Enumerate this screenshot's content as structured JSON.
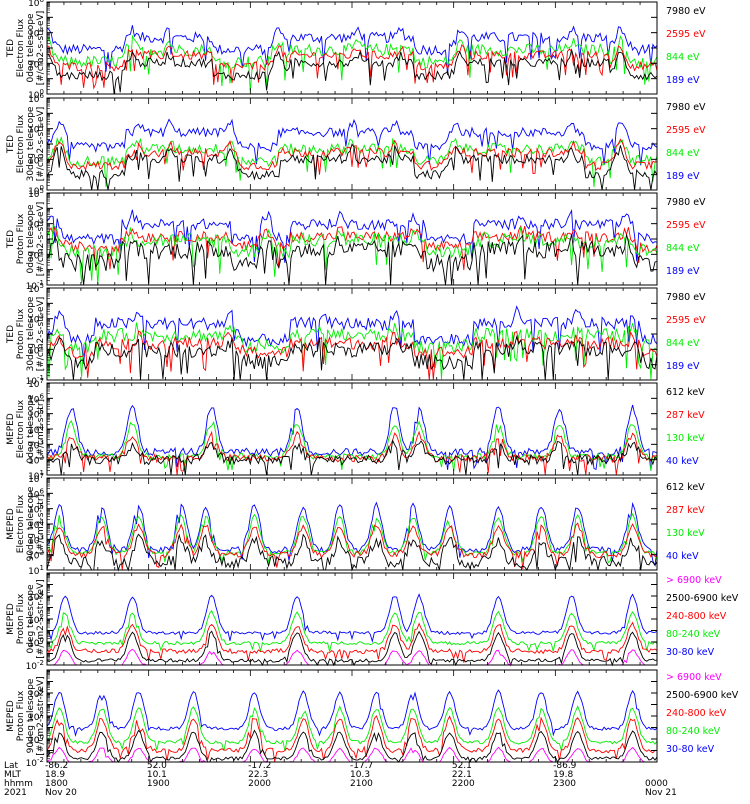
{
  "colors": {
    "blue": "#0000ff",
    "red": "#ff0000",
    "green": "#00ee00",
    "black": "#000000",
    "magenta": "#ff00ff"
  },
  "chart_data": [
    {
      "type": "line",
      "ylabel_lines": [
        "TED",
        "Electron Flux",
        "0deg telescope",
        "[#/cm2-s-str-eV]"
      ],
      "yscale": "log",
      "ylim_exp": [
        0,
        6
      ],
      "y_ticks": [
        {
          "b": "10",
          "e": "0"
        },
        {
          "b": "10",
          "e": "2"
        },
        {
          "b": "10",
          "e": "4"
        },
        {
          "b": "10",
          "e": "6"
        }
      ],
      "legend": [
        {
          "label": "7980 eV",
          "color": "black"
        },
        {
          "label": "2595 eV",
          "color": "red"
        },
        {
          "label": "844 eV",
          "color": "green"
        },
        {
          "label": "189 eV",
          "color": "blue"
        }
      ],
      "series": [
        {
          "color": "blue",
          "base": 2.9,
          "peak": 4.2,
          "noise": 0.35
        },
        {
          "color": "green",
          "base": 2.1,
          "peak": 3.4,
          "noise": 0.4
        },
        {
          "color": "red",
          "base": 1.8,
          "peak": 3.0,
          "noise": 0.3
        },
        {
          "color": "black",
          "base": 1.2,
          "peak": 2.6,
          "noise": 0.3
        }
      ],
      "peaks": [
        0.0,
        0.14,
        0.2,
        0.38,
        0.51,
        0.58,
        0.68,
        0.86,
        0.94
      ],
      "bands": [
        [
          0.13,
          0.27
        ],
        [
          0.4,
          0.6
        ],
        [
          0.68,
          0.92
        ]
      ]
    },
    {
      "type": "line",
      "ylabel_lines": [
        "TED",
        "Electron Flux",
        "30deg telescope",
        "[#/cm2-s-str-eV]"
      ],
      "yscale": "log",
      "ylim_exp": [
        0,
        6
      ],
      "y_ticks": [
        {
          "b": "10",
          "e": "0"
        },
        {
          "b": "10",
          "e": "2"
        },
        {
          "b": "10",
          "e": "4"
        },
        {
          "b": "10",
          "e": "6"
        }
      ],
      "legend": [
        {
          "label": "7980 eV",
          "color": "black"
        },
        {
          "label": "2595 eV",
          "color": "red"
        },
        {
          "label": "844 eV",
          "color": "green"
        },
        {
          "label": "189 eV",
          "color": "blue"
        }
      ],
      "series": [
        {
          "color": "blue",
          "base": 2.8,
          "peak": 4.4,
          "noise": 0.3
        },
        {
          "color": "green",
          "base": 1.9,
          "peak": 3.2,
          "noise": 0.35
        },
        {
          "color": "red",
          "base": 1.6,
          "peak": 3.0,
          "noise": 0.3
        },
        {
          "color": "black",
          "base": 1.0,
          "peak": 2.7,
          "noise": 0.3
        }
      ],
      "peaks": [
        0.02,
        0.15,
        0.2,
        0.3,
        0.5,
        0.57,
        0.67,
        0.86,
        0.94
      ],
      "bands": [
        [
          0.13,
          0.29
        ],
        [
          0.38,
          0.6
        ],
        [
          0.66,
          0.88
        ]
      ]
    },
    {
      "type": "line",
      "ylabel_lines": [
        "TED",
        "Proton Flux",
        "0deg telescope",
        "[#/cm2-s-str-eV]"
      ],
      "yscale": "log",
      "ylim_exp": [
        -1,
        5
      ],
      "y_ticks": [
        {
          "b": "10",
          "e": "-1"
        },
        {
          "b": "10",
          "e": "1"
        },
        {
          "b": "10",
          "e": "3"
        },
        {
          "b": "10",
          "e": "5"
        }
      ],
      "legend": [
        {
          "label": "7980 eV",
          "color": "black"
        },
        {
          "label": "2595 eV",
          "color": "red"
        },
        {
          "label": "844 eV",
          "color": "green"
        },
        {
          "label": "189 eV",
          "color": "blue"
        }
      ],
      "series": [
        {
          "color": "blue",
          "base": 2.0,
          "peak": 3.6,
          "noise": 0.35
        },
        {
          "color": "red",
          "base": 1.5,
          "peak": 2.6,
          "noise": 0.35
        },
        {
          "color": "green",
          "base": 1.2,
          "peak": 2.4,
          "noise": 0.5
        },
        {
          "color": "black",
          "base": 0.5,
          "peak": 1.8,
          "noise": 0.6
        }
      ],
      "peaks": [
        0.01,
        0.14,
        0.36,
        0.48,
        0.6,
        0.78,
        0.86,
        0.95
      ],
      "bands": [
        [
          0.12,
          0.3
        ],
        [
          0.4,
          0.62
        ],
        [
          0.7,
          0.95
        ]
      ]
    },
    {
      "type": "line",
      "ylabel_lines": [
        "TED",
        "Proton Flux",
        "30deg telescope",
        "[#/cm2-s-str-eV]"
      ],
      "yscale": "log",
      "ylim_exp": [
        -1,
        5
      ],
      "y_ticks": [
        {
          "b": "10",
          "e": "-1"
        },
        {
          "b": "10",
          "e": "1"
        },
        {
          "b": "10",
          "e": "3"
        },
        {
          "b": "10",
          "e": "5"
        }
      ],
      "legend": [
        {
          "label": "7980 eV",
          "color": "black"
        },
        {
          "label": "2595 eV",
          "color": "red"
        },
        {
          "label": "844 eV",
          "color": "green"
        },
        {
          "label": "189 eV",
          "color": "blue"
        }
      ],
      "series": [
        {
          "color": "blue",
          "base": 1.6,
          "peak": 3.4,
          "noise": 0.4
        },
        {
          "color": "green",
          "base": 1.2,
          "peak": 2.4,
          "noise": 0.45
        },
        {
          "color": "red",
          "base": 0.8,
          "peak": 1.8,
          "noise": 0.4
        },
        {
          "color": "black",
          "base": 0.2,
          "peak": 1.5,
          "noise": 0.5
        }
      ],
      "peaks": [
        0.02,
        0.15,
        0.3,
        0.45,
        0.57,
        0.77,
        0.87,
        0.96
      ],
      "bands": [
        [
          0.08,
          0.3
        ],
        [
          0.4,
          0.6
        ],
        [
          0.7,
          0.95
        ]
      ]
    },
    {
      "type": "line",
      "ylabel_lines": [
        "MEPED",
        "Electron Flux",
        "0deg telescope",
        "[#/cm2-s-str]"
      ],
      "yscale": "log",
      "ylim_exp": [
        1,
        7
      ],
      "y_ticks": [
        {
          "b": "10",
          "e": "1"
        },
        {
          "b": "10",
          "e": "2"
        },
        {
          "b": "10",
          "e": "3"
        },
        {
          "b": "10",
          "e": "4"
        },
        {
          "b": "10",
          "e": "5"
        },
        {
          "b": "10",
          "e": "6"
        },
        {
          "b": "10",
          "e": "7"
        }
      ],
      "legend": [
        {
          "label": "612 keV",
          "color": "black"
        },
        {
          "label": "287 keV",
          "color": "red"
        },
        {
          "label": "130 keV",
          "color": "green"
        },
        {
          "label": "40 keV",
          "color": "blue"
        }
      ],
      "series": [
        {
          "color": "blue",
          "base": 2.5,
          "peak": 5.4,
          "noise": 0.25
        },
        {
          "color": "green",
          "base": 2.2,
          "peak": 4.4,
          "noise": 0.2
        },
        {
          "color": "red",
          "base": 2.1,
          "peak": 3.6,
          "noise": 0.25
        },
        {
          "color": "black",
          "base": 2.0,
          "peak": 3.0,
          "noise": 0.35
        }
      ],
      "peaks": [
        0.04,
        0.14,
        0.27,
        0.41,
        0.57,
        0.61,
        0.74,
        0.84,
        0.96
      ],
      "bands": []
    },
    {
      "type": "line",
      "ylabel_lines": [
        "MEPED",
        "Electron Flux",
        "90deg telescope",
        "[#/cm2-s-str]"
      ],
      "yscale": "log",
      "ylim_exp": [
        1,
        7
      ],
      "y_ticks": [
        {
          "b": "10",
          "e": "1"
        },
        {
          "b": "10",
          "e": "2"
        },
        {
          "b": "10",
          "e": "3"
        },
        {
          "b": "10",
          "e": "4"
        },
        {
          "b": "10",
          "e": "5"
        },
        {
          "b": "10",
          "e": "6"
        },
        {
          "b": "10",
          "e": "7"
        }
      ],
      "legend": [
        {
          "label": "612 keV",
          "color": "black"
        },
        {
          "label": "287 keV",
          "color": "red"
        },
        {
          "label": "130 keV",
          "color": "green"
        },
        {
          "label": "40 keV",
          "color": "blue"
        }
      ],
      "series": [
        {
          "color": "blue",
          "base": 2.3,
          "peak": 5.2,
          "noise": 0.2
        },
        {
          "color": "green",
          "base": 2.1,
          "peak": 4.5,
          "noise": 0.15
        },
        {
          "color": "red",
          "base": 2.0,
          "peak": 3.9,
          "noise": 0.2
        },
        {
          "color": "black",
          "base": 1.5,
          "peak": 3.0,
          "noise": 0.4
        }
      ],
      "peaks": [
        0.02,
        0.09,
        0.15,
        0.22,
        0.26,
        0.34,
        0.42,
        0.48,
        0.54,
        0.6,
        0.66,
        0.74,
        0.81,
        0.87,
        0.96
      ],
      "bands": []
    },
    {
      "type": "line",
      "ylabel_lines": [
        "MEPED",
        "Proton Flux",
        "0deg telescope",
        "[#/cm2-s-str-keV]"
      ],
      "yscale": "log",
      "ylim_exp": [
        -2,
        6
      ],
      "y_ticks": [
        {
          "b": "10",
          "e": "-2"
        },
        {
          "b": "10",
          "e": "0"
        },
        {
          "b": "10",
          "e": "2"
        },
        {
          "b": "10",
          "e": "4"
        }
      ],
      "legend": [
        {
          "label": "> 6900 keV",
          "color": "magenta"
        },
        {
          "label": "2500-6900 keV",
          "color": "black"
        },
        {
          "label": "240-800 keV",
          "color": "red"
        },
        {
          "label": "80-240 keV",
          "color": "green"
        },
        {
          "label": "30-80 keV",
          "color": "blue"
        }
      ],
      "series": [
        {
          "color": "blue",
          "base": 0.8,
          "peak": 4.0,
          "noise": 0.15
        },
        {
          "color": "green",
          "base": -0.1,
          "peak": 2.6,
          "noise": 0.15
        },
        {
          "color": "red",
          "base": -0.8,
          "peak": 1.5,
          "noise": 0.2
        },
        {
          "color": "black",
          "base": -1.6,
          "peak": 0.8,
          "noise": 0.15
        },
        {
          "color": "magenta",
          "base": -2.1,
          "peak": -0.7,
          "noise": 0.1
        }
      ],
      "peaks": [
        0.03,
        0.14,
        0.27,
        0.41,
        0.57,
        0.61,
        0.74,
        0.86,
        0.96
      ],
      "bands": []
    },
    {
      "type": "line",
      "ylabel_lines": [
        "MEPED",
        "Proton Flux",
        "90deg telescope",
        "[#/cm2-s-str-keV]"
      ],
      "yscale": "log",
      "ylim_exp": [
        -2,
        6
      ],
      "y_ticks": [
        {
          "b": "10",
          "e": "-2"
        },
        {
          "b": "10",
          "e": "0"
        },
        {
          "b": "10",
          "e": "2"
        },
        {
          "b": "10",
          "e": "4"
        }
      ],
      "legend": [
        {
          "label": "> 6900 keV",
          "color": "magenta"
        },
        {
          "label": "2500-6900 keV",
          "color": "black"
        },
        {
          "label": "240-800 keV",
          "color": "red"
        },
        {
          "label": "80-240 keV",
          "color": "green"
        },
        {
          "label": "30-80 keV",
          "color": "blue"
        }
      ],
      "series": [
        {
          "color": "blue",
          "base": 0.9,
          "peak": 4.1,
          "noise": 0.15
        },
        {
          "color": "green",
          "base": -0.3,
          "peak": 2.7,
          "noise": 0.15
        },
        {
          "color": "red",
          "base": -1.0,
          "peak": 1.8,
          "noise": 0.2
        },
        {
          "color": "black",
          "base": -1.7,
          "peak": 0.6,
          "noise": 0.15
        },
        {
          "color": "magenta",
          "base": -2.1,
          "peak": -0.8,
          "noise": 0.1
        }
      ],
      "peaks": [
        0.02,
        0.09,
        0.15,
        0.24,
        0.34,
        0.42,
        0.48,
        0.54,
        0.6,
        0.66,
        0.74,
        0.81,
        0.87,
        0.96
      ],
      "bands": []
    }
  ],
  "time_axis": {
    "row_labels": [
      "Lat",
      "MLT",
      "hhmm",
      "2021"
    ],
    "columns": [
      {
        "frac": 0.0,
        "lat": "-86.2",
        "mlt": "18.9",
        "hhmm": "1800",
        "date": "Nov 20"
      },
      {
        "frac": 0.167,
        "lat": "52.0",
        "mlt": "10.1",
        "hhmm": "1900",
        "date": ""
      },
      {
        "frac": 0.333,
        "lat": "-17.2",
        "mlt": "22.3",
        "hhmm": "2000",
        "date": ""
      },
      {
        "frac": 0.5,
        "lat": "-17.7",
        "mlt": "10.3",
        "hhmm": "2100",
        "date": ""
      },
      {
        "frac": 0.667,
        "lat": "52.1",
        "mlt": "22.1",
        "hhmm": "2200",
        "date": ""
      },
      {
        "frac": 0.833,
        "lat": "-86.9",
        "mlt": "19.8",
        "hhmm": "2300",
        "date": ""
      },
      {
        "frac": 1.0,
        "lat": "",
        "mlt": "",
        "hhmm": "0000",
        "date": "Nov 21"
      }
    ]
  }
}
